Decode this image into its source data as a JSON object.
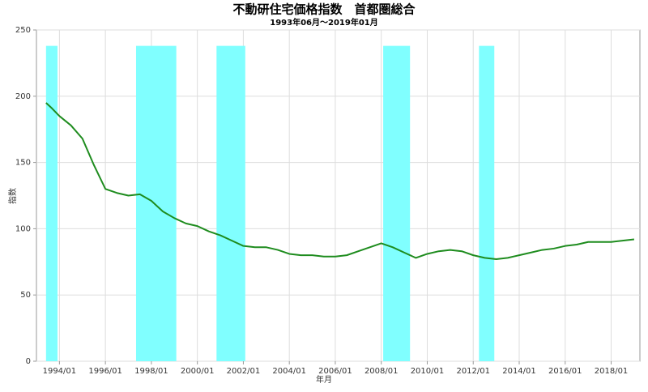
{
  "chart_data": {
    "type": "line",
    "title": "不動研住宅価格指数　首都圏総合",
    "subtitle": "1993年06月～2019年01月",
    "x_label": "年月",
    "y_label": "指数",
    "x": [
      "1993/06",
      "1993/09",
      "1994/01",
      "1994/07",
      "1995/01",
      "1995/07",
      "1996/01",
      "1996/07",
      "1997/01",
      "1997/07",
      "1998/01",
      "1998/07",
      "1999/01",
      "1999/07",
      "2000/01",
      "2000/07",
      "2001/01",
      "2001/07",
      "2002/01",
      "2002/07",
      "2003/01",
      "2003/07",
      "2004/01",
      "2004/07",
      "2005/01",
      "2005/07",
      "2006/01",
      "2006/07",
      "2007/01",
      "2007/07",
      "2008/01",
      "2008/07",
      "2009/01",
      "2009/07",
      "2010/01",
      "2010/07",
      "2011/01",
      "2011/07",
      "2012/01",
      "2012/07",
      "2013/01",
      "2013/07",
      "2014/01",
      "2014/07",
      "2015/01",
      "2015/07",
      "2016/01",
      "2016/07",
      "2017/01",
      "2017/07",
      "2018/01",
      "2018/07",
      "2019/01"
    ],
    "series": [
      {
        "color": "#1e8c1e",
        "values": [
          195,
          191,
          185,
          178,
          168,
          148,
          130,
          127,
          125,
          126,
          121,
          113,
          108,
          104,
          102,
          98,
          95,
          91,
          87,
          86,
          86,
          84,
          81,
          80,
          80,
          79,
          79,
          80,
          83,
          86,
          89,
          86,
          82,
          78,
          81,
          83,
          84,
          83,
          80,
          78,
          77,
          78,
          80,
          82,
          84,
          85,
          87,
          88,
          90,
          90,
          90,
          91,
          92
        ]
      }
    ],
    "shaded_periods": [
      {
        "start": "1993/06",
        "end": "1993/12"
      },
      {
        "start": "1997/05",
        "end": "1999/02"
      },
      {
        "start": "2000/11",
        "end": "2002/02"
      },
      {
        "start": "2008/02",
        "end": "2009/04"
      },
      {
        "start": "2012/04",
        "end": "2012/12"
      }
    ],
    "shade_color": "#80ffff",
    "xlim": [
      "1993/01",
      "2019/04"
    ],
    "xticks": [
      "1994/01",
      "1996/01",
      "1998/01",
      "2000/01",
      "2002/01",
      "2004/01",
      "2006/01",
      "2008/01",
      "2010/01",
      "2012/01",
      "2014/01",
      "2016/01",
      "2018/01"
    ],
    "ylim": [
      0,
      250
    ],
    "yticks": [
      0,
      50,
      100,
      150,
      200,
      250
    ],
    "grid": true
  }
}
